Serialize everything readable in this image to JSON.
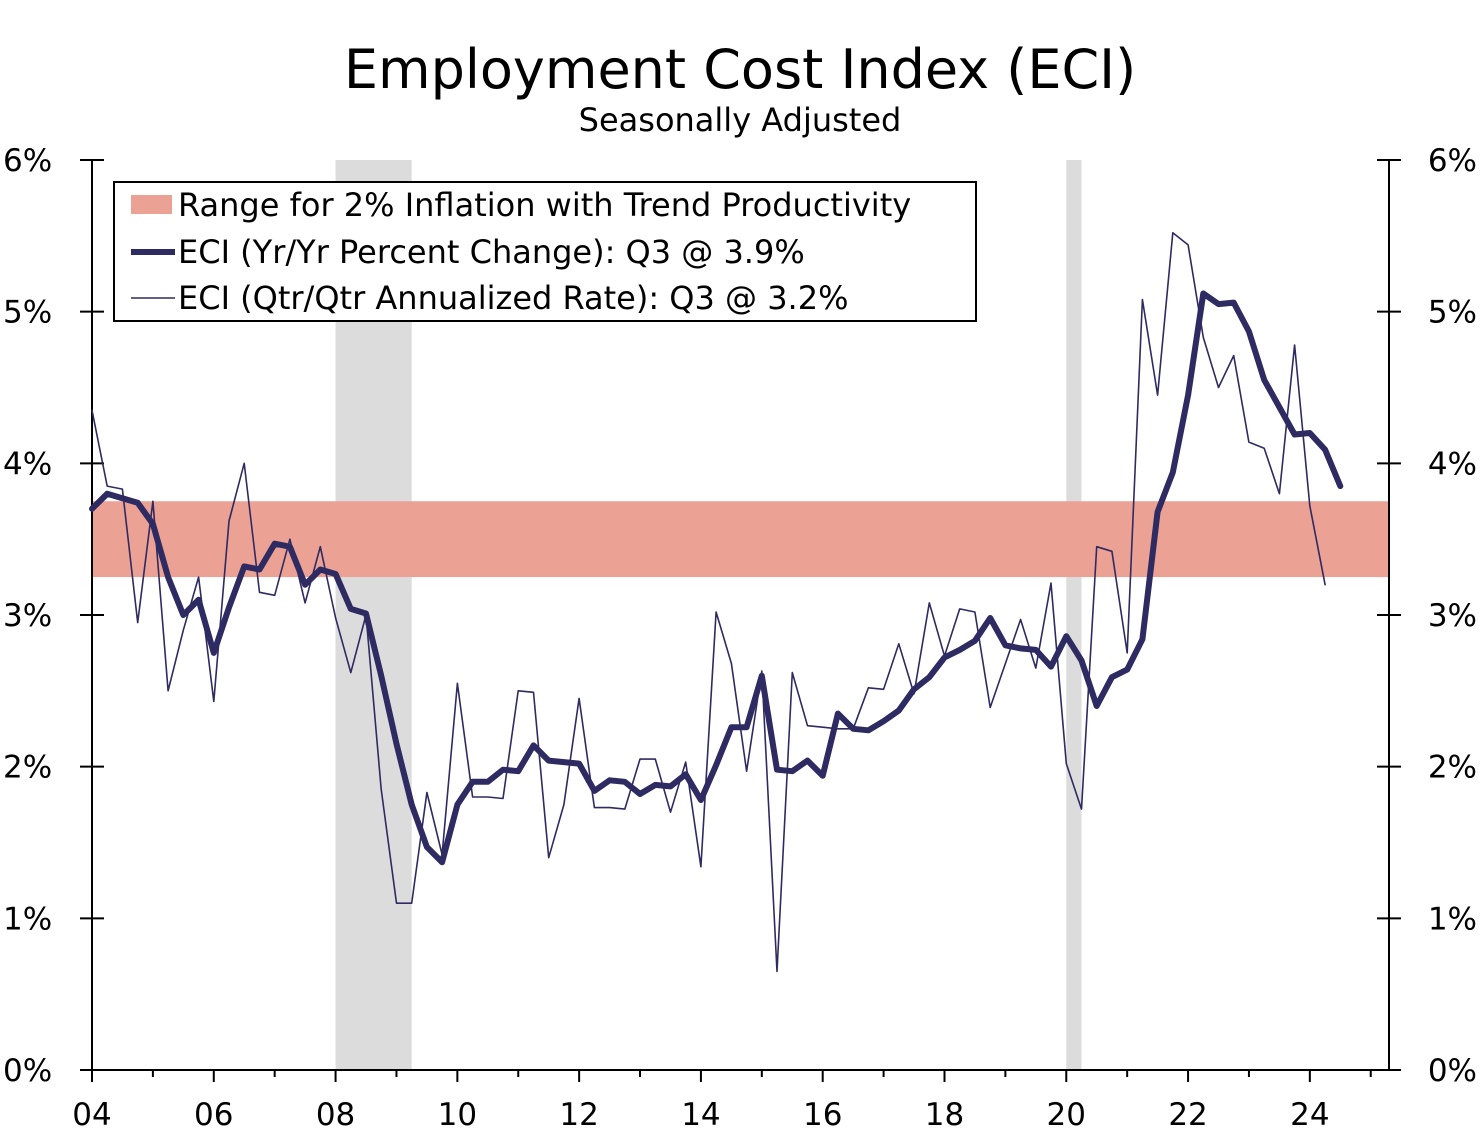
{
  "chart_data": {
    "type": "line",
    "title": "Employment Cost Index (ECI)",
    "subtitle": "Seasonally Adjusted",
    "xlabel": "",
    "ylabel": "",
    "xlim": [
      2004,
      2025.3
    ],
    "ylim": [
      0,
      6
    ],
    "x_ticks": [
      {
        "value": 2004,
        "label": "04"
      },
      {
        "value": 2006,
        "label": "06"
      },
      {
        "value": 2008,
        "label": "08"
      },
      {
        "value": 2010,
        "label": "10"
      },
      {
        "value": 2012,
        "label": "12"
      },
      {
        "value": 2014,
        "label": "14"
      },
      {
        "value": 2016,
        "label": "16"
      },
      {
        "value": 2018,
        "label": "18"
      },
      {
        "value": 2020,
        "label": "20"
      },
      {
        "value": 2022,
        "label": "22"
      },
      {
        "value": 2024,
        "label": "24"
      }
    ],
    "y_ticks": [
      {
        "value": 0,
        "label": "0%"
      },
      {
        "value": 1,
        "label": "1%"
      },
      {
        "value": 2,
        "label": "2%"
      },
      {
        "value": 3,
        "label": "3%"
      },
      {
        "value": 4,
        "label": "4%"
      },
      {
        "value": 5,
        "label": "5%"
      },
      {
        "value": 6,
        "label": "6%"
      }
    ],
    "recessions": [
      {
        "start": 2008.0,
        "end": 2009.25
      },
      {
        "start": 2020.0,
        "end": 2020.25
      }
    ],
    "band": {
      "name": "Range for 2% Inflation with Trend Productivity",
      "low": 3.25,
      "high": 3.75,
      "color": "#eba193"
    },
    "legend": [
      {
        "label": "Range for 2% Inflation with Trend Productivity",
        "kind": "band"
      },
      {
        "label": "ECI (Yr/Yr Percent Change): Q3 @ 3.9%",
        "kind": "thick"
      },
      {
        "label": "ECI (Qtr/Qtr Annualized Rate): Q3 @ 3.2%",
        "kind": "thin"
      }
    ],
    "series": [
      {
        "name": "ECI (Yr/Yr Percent Change)",
        "color": "#2e2a62",
        "x_start": 2004.0,
        "x_step": 0.25,
        "values": [
          3.7,
          3.8,
          3.77,
          3.74,
          3.6,
          3.25,
          3.0,
          3.1,
          2.75,
          3.05,
          3.32,
          3.3,
          3.47,
          3.45,
          3.2,
          3.3,
          3.27,
          3.04,
          3.01,
          2.6,
          2.15,
          1.75,
          1.47,
          1.37,
          1.75,
          1.9,
          1.9,
          1.98,
          1.97,
          2.14,
          2.04,
          2.03,
          2.02,
          1.84,
          1.91,
          1.9,
          1.82,
          1.88,
          1.87,
          1.95,
          1.78,
          2.01,
          2.26,
          2.26,
          2.6,
          1.98,
          1.97,
          2.04,
          1.94,
          2.35,
          2.25,
          2.24,
          2.3,
          2.37,
          2.51,
          2.59,
          2.72,
          2.77,
          2.83,
          2.98,
          2.8,
          2.78,
          2.77,
          2.66,
          2.86,
          2.7,
          2.4,
          2.59,
          2.64,
          2.84,
          3.68,
          3.94,
          4.45,
          5.12,
          5.05,
          5.06,
          4.87,
          4.55,
          4.37,
          4.19,
          4.2,
          4.09,
          3.85
        ]
      },
      {
        "name": "ECI (Qtr/Qtr Annualized Rate)",
        "color": "#2e2a62",
        "x_start": 2004.0,
        "x_step": 0.25,
        "values": [
          4.35,
          3.85,
          3.83,
          2.95,
          3.75,
          2.5,
          2.9,
          3.25,
          2.43,
          3.62,
          4.0,
          3.15,
          3.13,
          3.5,
          3.08,
          3.45,
          2.98,
          2.62,
          3.0,
          1.85,
          1.1,
          1.1,
          1.83,
          1.42,
          2.55,
          1.8,
          1.8,
          1.79,
          2.5,
          2.49,
          1.4,
          1.75,
          2.45,
          1.73,
          1.73,
          1.72,
          2.05,
          2.05,
          1.7,
          2.03,
          1.34,
          3.02,
          2.68,
          1.97,
          2.63,
          0.65,
          2.62,
          2.27,
          2.26,
          2.25,
          2.25,
          2.52,
          2.51,
          2.81,
          2.48,
          3.08,
          2.73,
          3.04,
          3.02,
          2.39,
          2.68,
          2.97,
          2.65,
          3.21,
          2.02,
          1.72,
          3.45,
          3.42,
          2.75,
          5.08,
          4.45,
          5.52,
          5.44,
          4.83,
          4.5,
          4.71,
          4.14,
          4.1,
          3.8,
          4.78,
          3.72,
          3.2
        ]
      }
    ]
  }
}
